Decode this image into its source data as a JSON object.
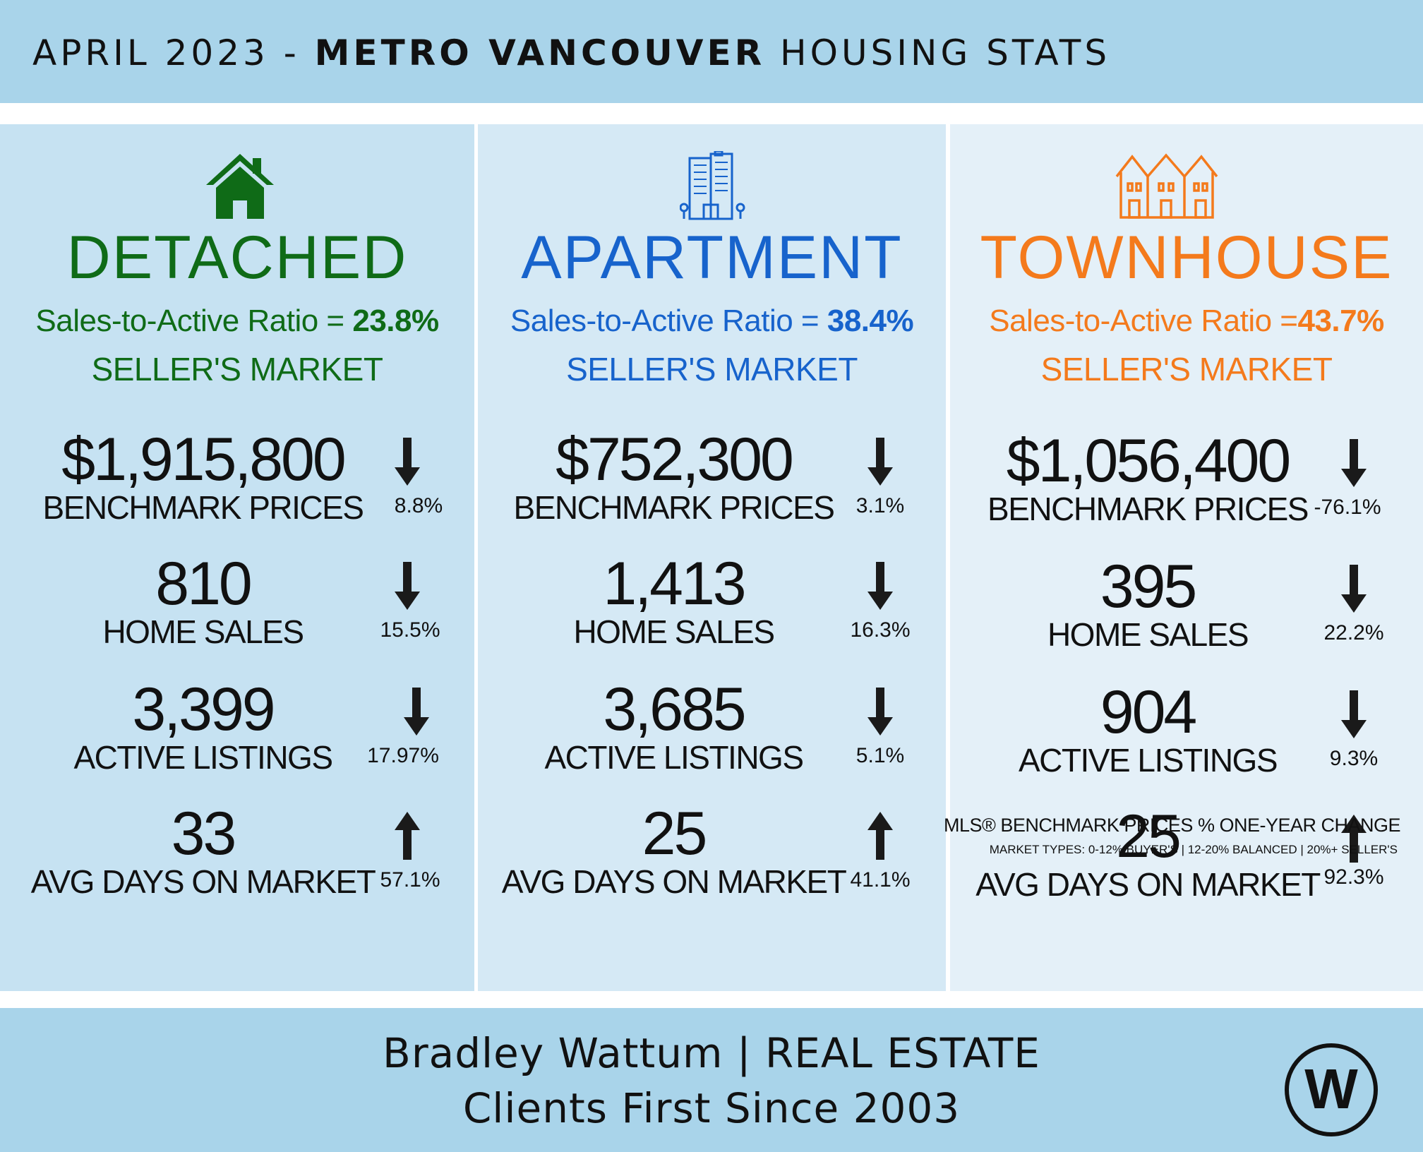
{
  "header": {
    "title_prefix": "APRIL 2023 - ",
    "title_bold": "METRO VANCOUVER",
    "title_suffix": " HOUSING STATS"
  },
  "colors": {
    "detached": "#0f6b17",
    "apartment": "#1763cc",
    "townhouse": "#f47a1c"
  },
  "columns": [
    {
      "icon": "house-icon",
      "title": "DETACHED",
      "ratio_label": "Sales-to-Active Ratio = ",
      "ratio_value": "23.8%",
      "market": "SELLER'S MARKET",
      "stats": [
        {
          "value": "$1,915,800",
          "label": "BENCHMARK PRICES",
          "direction": "down",
          "pct": "8.8%"
        },
        {
          "value": "810",
          "label": "HOME SALES",
          "direction": "down",
          "pct": "15.5%"
        },
        {
          "value": "3,399",
          "label": "ACTIVE LISTINGS",
          "direction": "down",
          "pct": "17.97%"
        },
        {
          "value": "33",
          "label": "AVG DAYS ON MARKET",
          "direction": "up",
          "pct": "57.1%"
        }
      ]
    },
    {
      "icon": "apartment-building-icon",
      "title": "APARTMENT",
      "ratio_label": "Sales-to-Active Ratio = ",
      "ratio_value": "38.4%",
      "market": "SELLER'S MARKET",
      "stats": [
        {
          "value": "$752,300",
          "label": "BENCHMARK PRICES",
          "direction": "down",
          "pct": "3.1%"
        },
        {
          "value": "1,413",
          "label": "HOME SALES",
          "direction": "down",
          "pct": "16.3%"
        },
        {
          "value": "3,685",
          "label": "ACTIVE LISTINGS",
          "direction": "down",
          "pct": "5.1%"
        },
        {
          "value": "25",
          "label": "AVG DAYS ON MARKET",
          "direction": "up",
          "pct": "41.1%"
        }
      ]
    },
    {
      "icon": "townhouses-icon",
      "title": "TOWNHOUSE",
      "ratio_label": "Sales-to-Active Ratio =",
      "ratio_value": "43.7%",
      "market": "SELLER'S MARKET",
      "stats": [
        {
          "value": "$1,056,400",
          "label": "BENCHMARK PRICES",
          "direction": "down",
          "pct": "-76.1%"
        },
        {
          "value": "395",
          "label": "HOME SALES",
          "direction": "down",
          "pct": "22.2%"
        },
        {
          "value": "904",
          "label": "ACTIVE LISTINGS",
          "direction": "down",
          "pct": "9.3%"
        },
        {
          "value": "25",
          "label": "AVG DAYS ON MARKET",
          "direction": "up",
          "pct": "92.3%"
        }
      ]
    }
  ],
  "notes": {
    "line1": "MLS® BENCHMARK PRICES % ONE-YEAR CHANGE",
    "line2": "MARKET TYPES: 0-12% BUYER'S | 12-20% BALANCED | 20%+ SELLER'S"
  },
  "footer": {
    "line1": "Bradley Wattum | REAL ESTATE",
    "line2": "Clients First Since 2003",
    "logo_letter": "W"
  }
}
